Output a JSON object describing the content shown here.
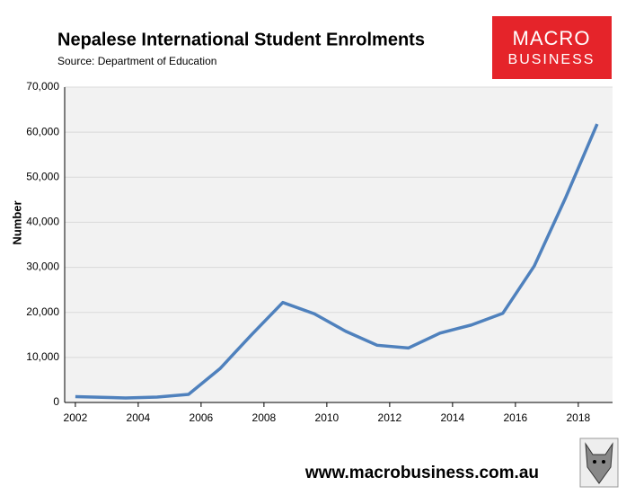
{
  "chart_data": {
    "type": "line",
    "title": "Nepalese International Student Enrolments",
    "subtitle": "Source: Department of Education",
    "y_label": "Number",
    "logo": [
      "MACRO",
      "BUSINESS"
    ],
    "footer": "www.macrobusiness.com.au",
    "x": [
      2002,
      2003.6,
      2004.6,
      2005.6,
      2006.6,
      2007.6,
      2008.6,
      2009.6,
      2010.6,
      2011.6,
      2012.6,
      2013.6,
      2014.6,
      2015.6,
      2016.6,
      2017.6,
      2018.6
    ],
    "series": [
      {
        "name": "Enrolments",
        "color": "#4f81bd",
        "values": [
          1300,
          1000,
          1200,
          1800,
          7500,
          15000,
          22200,
          19700,
          15800,
          12700,
          12100,
          15400,
          17200,
          19800,
          30300,
          45500,
          61800
        ]
      }
    ],
    "xlim": [
      2001.66,
      2019.09
    ],
    "xticks": [
      2002,
      2004,
      2006,
      2008,
      2010,
      2012,
      2014,
      2016,
      2018
    ],
    "ylim": [
      0,
      70000
    ],
    "yticks": [
      0,
      {
        "value": 10000,
        "label": "10,000"
      },
      {
        "value": 20000,
        "label": "20,000"
      },
      {
        "value": 30000,
        "label": "30,000"
      },
      {
        "value": 40000,
        "label": "40,000"
      },
      {
        "value": 50000,
        "label": "50,000"
      },
      {
        "value": 60000,
        "label": "60,000"
      },
      {
        "value": 70000,
        "label": "70,000"
      }
    ],
    "grid": true
  }
}
